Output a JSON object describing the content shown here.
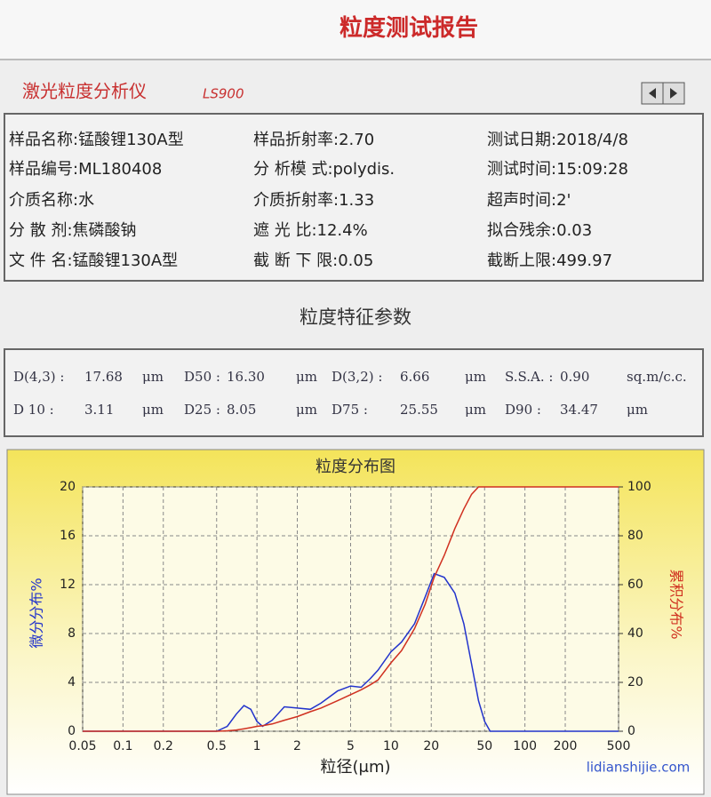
{
  "header": {
    "title": "粒度测试报告",
    "instrument": "激光粒度分析仪",
    "model": "LS900"
  },
  "info": {
    "rows": [
      [
        "样品名称:锰酸锂130A型",
        "样品折射率:2.70",
        "测试日期:2018/4/8"
      ],
      [
        "样品编号:ML180408",
        "分 析模 式:polydis.",
        "测试时间:15:09:28"
      ],
      [
        "介质名称:水",
        "介质折射率:1.33",
        "超声时间:2'"
      ],
      [
        "分 散 剂:焦磷酸钠",
        "遮 光 比:12.4%",
        "拟合残余:0.03"
      ],
      [
        "文 件 名:锰酸锂130A型",
        "截 断 下 限:0.05",
        "截断上限:499.97"
      ]
    ]
  },
  "params": {
    "title": "粒度特征参数",
    "rows": [
      [
        {
          "label": "D(4,3) :",
          "value": "17.68",
          "unit": "μm"
        },
        {
          "label": "D50 :",
          "value": "16.30",
          "unit": "μm"
        },
        {
          "label": "D(3,2) :",
          "value": "6.66",
          "unit": "μm"
        },
        {
          "label": "S.S.A. :",
          "value": "0.90",
          "unit": "sq.m/c.c."
        }
      ],
      [
        {
          "label": "D 10 :",
          "value": "3.11",
          "unit": "μm"
        },
        {
          "label": "D25 :",
          "value": "8.05",
          "unit": "μm"
        },
        {
          "label": "D75 :",
          "value": "25.55",
          "unit": "μm"
        },
        {
          "label": "D90 :",
          "value": "34.47",
          "unit": "μm"
        }
      ]
    ]
  },
  "chart_data": {
    "type": "line",
    "title": "粒度分布图",
    "x_label": "粒径(μm)",
    "y_label": "微分分布%",
    "y2_label": "累积分布%",
    "log_x": true,
    "grid": true,
    "x": [
      0.05,
      0.5,
      0.6,
      0.7,
      0.8,
      0.9,
      1.0,
      1.1,
      1.3,
      1.6,
      2,
      2.5,
      3,
      4,
      5,
      6,
      7,
      8,
      10,
      12,
      15,
      18,
      21,
      25,
      30,
      35,
      40,
      45,
      50,
      55,
      500
    ],
    "xlim": [
      0.05,
      500
    ],
    "xticks": [
      0.05,
      0.1,
      0.2,
      0.5,
      1,
      2,
      5,
      10,
      20,
      50,
      100,
      200,
      500
    ],
    "ylim": [
      0,
      20
    ],
    "yticks": [
      0,
      4,
      8,
      12,
      16,
      20
    ],
    "y2lim": [
      0,
      100
    ],
    "y2ticks": [
      0,
      20,
      40,
      60,
      80,
      100
    ],
    "series": [
      {
        "color": "#2233cc",
        "values": [
          0,
          0,
          0.4,
          1.4,
          2.1,
          1.8,
          0.8,
          0.4,
          0.9,
          2.0,
          1.9,
          1.8,
          2.3,
          3.3,
          3.7,
          3.6,
          4.3,
          5.0,
          6.5,
          7.3,
          8.8,
          11,
          12.9,
          12.6,
          11.3,
          8.8,
          5.5,
          2.5,
          0.8,
          0,
          0
        ]
      },
      {
        "color": "#d03020",
        "axis": "y2",
        "values": [
          0,
          0,
          0.2,
          0.5,
          1,
          1.5,
          2,
          2.3,
          3,
          4.5,
          6,
          8,
          9.5,
          12.5,
          15,
          17,
          19,
          21,
          28,
          33,
          42,
          52,
          63,
          72,
          83,
          91,
          97,
          100,
          100,
          100,
          100
        ]
      }
    ]
  },
  "watermark": "lidianshijie.com"
}
